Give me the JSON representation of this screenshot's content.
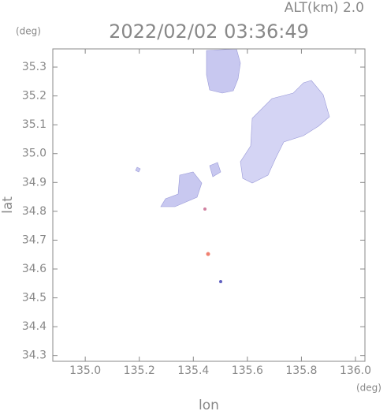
{
  "chart_data": {
    "type": "map",
    "altitude_label": "ALT(km) 2.0",
    "title": "2022/02/02 03:36:49",
    "x_label": "lon",
    "y_label": "lat",
    "x_unit": "(deg)",
    "y_unit": "(deg)",
    "xlim": [
      134.88,
      136.035
    ],
    "ylim": [
      34.28,
      35.363
    ],
    "xticks": [
      {
        "value": 135,
        "label": "135.0"
      },
      135.2,
      135.4,
      135.6,
      135.8,
      {
        "value": 136,
        "label": "136.0"
      }
    ],
    "yticks": [
      34.3,
      34.4,
      34.5,
      34.6,
      34.7,
      34.8,
      34.9,
      {
        "value": 35,
        "label": "35.0"
      },
      35.1,
      35.2,
      35.3
    ]
  }
}
